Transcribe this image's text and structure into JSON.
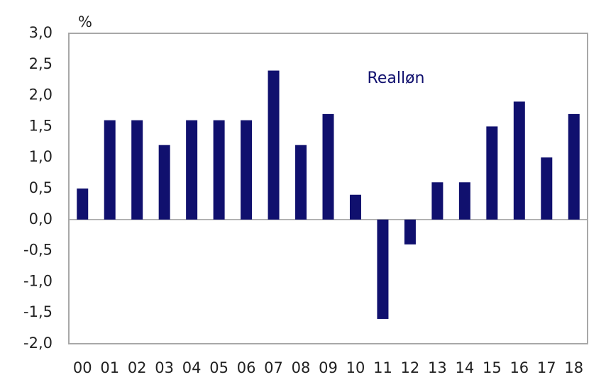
{
  "chart_data": {
    "type": "bar",
    "ylabel": "%",
    "annotation": "Realløn",
    "categories": [
      "00",
      "01",
      "02",
      "03",
      "04",
      "05",
      "06",
      "07",
      "08",
      "09",
      "10",
      "11",
      "12",
      "13",
      "14",
      "15",
      "16",
      "17",
      "18"
    ],
    "values": [
      0.5,
      1.6,
      1.6,
      1.2,
      1.6,
      1.6,
      1.6,
      2.4,
      1.2,
      1.7,
      0.4,
      -1.6,
      -0.4,
      0.6,
      0.6,
      1.5,
      1.9,
      1.0,
      1.7
    ],
    "color": "#10106e",
    "ylim": [
      -2,
      3
    ],
    "yticks": [
      {
        "value": 3,
        "label": "3,0"
      },
      {
        "value": 2.5,
        "label": "2,5"
      },
      {
        "value": 2,
        "label": "2,0"
      },
      {
        "value": 1.5,
        "label": "1,5"
      },
      {
        "value": 1,
        "label": "1,0"
      },
      {
        "value": 0.5,
        "label": "0,5"
      },
      {
        "value": 0,
        "label": "0,0"
      },
      {
        "value": -0.5,
        "label": "-0,5"
      },
      {
        "value": -1,
        "label": "-1,0"
      },
      {
        "value": -1.5,
        "label": "-1,5"
      },
      {
        "value": -2,
        "label": "-2,0"
      }
    ],
    "grid": false
  }
}
